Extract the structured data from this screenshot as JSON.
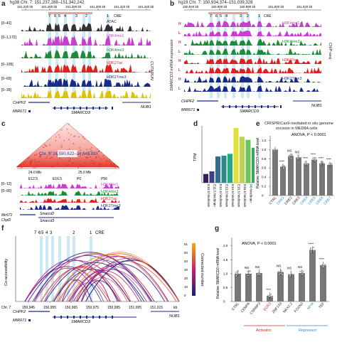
{
  "panels": {
    "a": {
      "letter": "a",
      "coord": "hg38 Chr. 7: 151,237,288–151,342,242",
      "ticks": [
        "151,240 kb",
        "151,260 kb",
        "151,280 kb",
        "151,300 kb",
        "151,320 kb",
        "151,340 kb"
      ],
      "cre_markers": [
        "7",
        "6",
        "5",
        "4",
        "3",
        "2",
        "1"
      ],
      "cre_label": "CRE",
      "tracks": [
        {
          "range": "[0–41]",
          "name": "ATAC",
          "color": "#333333"
        },
        {
          "range": "[0–1,172]",
          "name": "H3K4me1",
          "color": "#c83fcf"
        },
        {
          "range": "",
          "name": "H3K4me3",
          "color": "#1f8a3a"
        },
        {
          "range": "[0–105]",
          "name": "H3K27ac",
          "color": "#e02020"
        },
        {
          "range": "[0–69]",
          "name": "H3K27me3",
          "color": "#1a2a8c"
        },
        {
          "range": "[0–39]",
          "name": "",
          "color": "#d8c400"
        }
      ],
      "side_label": "CUT&RUN",
      "genes": [
        "CHPF2",
        "MIR671",
        "SMARCD3",
        "NUB1"
      ]
    },
    "b": {
      "letter": "b",
      "coord": "hg19 Chr. 7: 150,934,374–151,039,328",
      "ticks": [
        "150,940 kb",
        "150,960 kb",
        "150,980 kb",
        "151,000 kb",
        "151,020 kb"
      ],
      "cre_markers": [
        "7",
        "6",
        "5",
        "4",
        "3",
        "2",
        "1"
      ],
      "cre_label": "CRE",
      "group_labels": [
        "H",
        "L",
        "H",
        "L",
        "H",
        "L",
        "H",
        "L"
      ],
      "tracks": [
        {
          "name": "H3K4me1",
          "color": "#c83fcf"
        },
        {
          "name": "H3K4me3",
          "color": "#1f8a3a"
        },
        {
          "name": "H3K27ac",
          "color": "#e02020"
        },
        {
          "name": "H3K27me3",
          "color": "#1a2a8c"
        }
      ],
      "ylabel": "SMARCD3 mRNA expression",
      "side_label": "ChIP-seq",
      "genes": [
        "CHPF2",
        "MIR671",
        "SMARCD3",
        "NUB1"
      ]
    },
    "c": {
      "letter": "c",
      "coord": "Chr. 5: 24,590,622–24,645,993",
      "ticks": [
        "24.0 Mb",
        "25.0 Mb"
      ],
      "stages": [
        "E12.5",
        "E16.5",
        "P0",
        "P56"
      ],
      "tracks": [
        {
          "range": "[0–12]",
          "name": "H3K4me1",
          "color": "#c83fcf"
        },
        {
          "range": "[0–90]",
          "name": "H3K4me3",
          "color": "#1f8a3a"
        },
        {
          "range": "",
          "name": "H3K27ac",
          "color": "#e02020"
        },
        {
          "range": "",
          "name": "H3K27me3",
          "color": "#1a2a8c"
        }
      ],
      "genes": [
        "Mir671",
        "Chpf2",
        "Smarcd2",
        "Smarcd3"
      ]
    },
    "d": {
      "letter": "d",
      "ylabel": "TPM"
    },
    "e": {
      "letter": "e",
      "title": "CRISPR/Cas9-mediated in situ genome",
      "title2": "excision in MED8A cells",
      "stat": "ANOVA, P < 0.0001",
      "ylabel": "Relative SMARCD3 mRNA level"
    },
    "f": {
      "letter": "f",
      "cre_markers": [
        "7",
        "6",
        "5",
        "4",
        "3",
        "2",
        "1"
      ],
      "cre_label": "CRE",
      "ylabel": "Co-accessibility",
      "colorbar_label": "Connected number",
      "colorbar_ticks": [
        "61",
        "50",
        "40",
        "30",
        "20",
        "10",
        "0"
      ],
      "axis_prefix": "Chr. 7",
      "axis_ticks": [
        "150,940",
        "150,945",
        "150,950",
        "150,955",
        "150,960",
        "150,965",
        "150,970",
        "150,975",
        "150,980",
        "150,985",
        "150,990",
        "150,995",
        "151,000",
        "151,005",
        "151,010",
        "151,015",
        "151,020",
        "151,025"
      ],
      "axis_ticks_shown": [
        "150,945",
        "150,955",
        "150,965",
        "150,975",
        "150,995",
        "151,005",
        "151,015"
      ],
      "axis_unit": "kb",
      "genes": [
        "CHPF2",
        "MIR671",
        "SMARCD3",
        "NUB1"
      ]
    },
    "g": {
      "letter": "g",
      "stat": "ANOVA, P < 0.0001",
      "ylabel": "Relative SMARCD3 mRNA level",
      "activator_label": "Activator",
      "repressor_label": "Repressor"
    }
  },
  "chart_data": [
    {
      "type": "bar",
      "panel": "d",
      "categories": [
        "E10.5 hindbrain",
        "E11.5 hindbrain",
        "E12.5 hindbrain",
        "E13.5 hindbrain",
        "E14.5 hindbrain",
        "E15.5 hindbrain",
        "E16.5 hindbrain",
        "P0 hindbrain",
        "P56 cerebellum"
      ],
      "values": [
        20,
        26,
        60,
        62,
        66,
        125,
        105,
        98,
        80
      ],
      "colors": [
        "#3b1c5a",
        "#3f3f8c",
        "#2f6e8e",
        "#2a8a8a",
        "#23a883",
        "#e2e13a",
        "#b8d64a",
        "#6cc45a",
        "#3da562"
      ],
      "ylabel": "TPM",
      "ylim": [
        0,
        130
      ]
    },
    {
      "type": "bar",
      "panel": "e",
      "categories": [
        "CTRL",
        "CRE1",
        "CRE2",
        "CRE3",
        "CRE4",
        "CRE5",
        "CRE6",
        "CRE7"
      ],
      "values": [
        1.0,
        0.63,
        0.86,
        0.83,
        0.7,
        0.78,
        0.7,
        0.67
      ],
      "significance": [
        "",
        "****",
        "NS",
        "NS",
        "****",
        "****",
        "****",
        "****"
      ],
      "label_colors": [
        "#222222",
        "#2a8ad1",
        "#222222",
        "#222222",
        "#2a8ad1",
        "#2a8ad1",
        "#2a8ad1",
        "#2a8ad1"
      ],
      "ylabel": "Relative SMARCD3 mRNA level",
      "yticks": [
        "0",
        "0.2",
        "0.4",
        "0.6",
        "0.8",
        "1.0",
        "1.2"
      ],
      "ylim": [
        0,
        1.3
      ]
    },
    {
      "type": "bar",
      "panel": "g",
      "categories": [
        "CTRL",
        "CENPA",
        "CSRNP3",
        "EGR3",
        "ZNF143",
        "NKX2.2",
        "FOXN3",
        "NFIA",
        "TEF"
      ],
      "values": [
        1.0,
        1.0,
        1.02,
        0.2,
        1.06,
        0.98,
        1.02,
        1.85,
        1.3
      ],
      "significance": [
        "",
        "NS",
        "NS",
        "****",
        "NS",
        "NS",
        "NS",
        "****",
        "****"
      ],
      "label_colors": [
        "#222222",
        "#222222",
        "#222222",
        "#e02020",
        "#222222",
        "#222222",
        "#222222",
        "#2a8ad1",
        "#222222"
      ],
      "ylabel": "Relative SMARCD3 mRNA level",
      "yticks": [
        "0",
        "0.5",
        "1.0",
        "1.5",
        "2.0"
      ],
      "ylim": [
        0,
        2.3
      ],
      "groups": [
        {
          "name": "Activator",
          "from": 1,
          "to": 4,
          "color": "#e02020"
        },
        {
          "name": "Repressor",
          "from": 5,
          "to": 8,
          "color": "#2a8ad1"
        }
      ]
    }
  ]
}
